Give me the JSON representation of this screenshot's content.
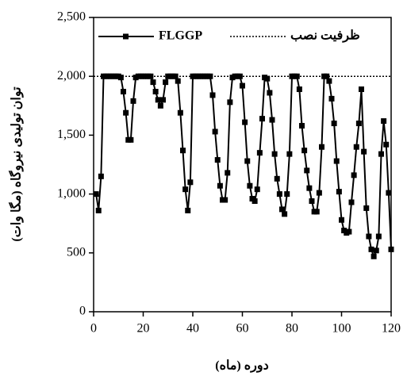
{
  "chart_data": {
    "type": "line",
    "ylabel": "توان تولیدی نیروگاه (مگا وات)",
    "xlabel": "دوره (ماه)",
    "xlim": [
      0,
      120
    ],
    "xticks": [
      0,
      20,
      40,
      60,
      80,
      100,
      120
    ],
    "ylim": [
      0,
      2500
    ],
    "yticks": [
      0,
      500,
      {
        "value": 1000,
        "label": "1,000"
      },
      {
        "value": 1500,
        "label": "1,500"
      },
      {
        "value": 2000,
        "label": "2,000"
      },
      {
        "value": 2500,
        "label": "2,500"
      }
    ],
    "series": [
      {
        "name": "FLGGP",
        "color": "#000000",
        "marker": "square",
        "dash": "solid",
        "x": [
          1,
          2,
          3,
          4,
          5,
          6,
          7,
          8,
          9,
          10,
          11,
          12,
          13,
          14,
          15,
          16,
          17,
          18,
          19,
          20,
          21,
          22,
          23,
          24,
          25,
          26,
          27,
          28,
          29,
          30,
          31,
          32,
          33,
          34,
          35,
          36,
          37,
          38,
          39,
          40,
          41,
          42,
          43,
          44,
          45,
          46,
          47,
          48,
          49,
          50,
          51,
          52,
          53,
          54,
          55,
          56,
          57,
          58,
          59,
          60,
          61,
          62,
          63,
          64,
          65,
          66,
          67,
          68,
          69,
          70,
          71,
          72,
          73,
          74,
          75,
          76,
          77,
          78,
          79,
          80,
          81,
          82,
          83,
          84,
          85,
          86,
          87,
          88,
          89,
          90,
          91,
          92,
          93,
          94,
          95,
          96,
          97,
          98,
          99,
          100,
          101,
          102,
          103,
          104,
          105,
          106,
          107,
          108,
          109,
          110,
          111,
          112,
          113,
          114,
          115,
          116,
          117,
          118,
          119,
          120
        ],
        "values": [
          1000,
          860,
          1150,
          2000,
          2000,
          2000,
          2000,
          2000,
          2000,
          2000,
          1990,
          1870,
          1690,
          1460,
          1460,
          1790,
          1990,
          2000,
          2000,
          2000,
          2000,
          2000,
          2000,
          1950,
          1870,
          1800,
          1750,
          1800,
          1950,
          2000,
          2000,
          2000,
          2000,
          1960,
          1690,
          1370,
          1040,
          860,
          1100,
          2000,
          2000,
          2000,
          2000,
          2000,
          2000,
          2000,
          2000,
          1840,
          1530,
          1290,
          1070,
          950,
          950,
          1180,
          1780,
          1990,
          2000,
          2000,
          2000,
          1920,
          1610,
          1280,
          1070,
          960,
          940,
          1040,
          1350,
          1640,
          1990,
          1980,
          1860,
          1630,
          1340,
          1130,
          1000,
          870,
          830,
          1000,
          1340,
          2000,
          2000,
          2000,
          1890,
          1580,
          1370,
          1200,
          1050,
          940,
          850,
          850,
          1010,
          1400,
          2000,
          2000,
          1960,
          1810,
          1600,
          1280,
          1020,
          780,
          690,
          670,
          680,
          930,
          1160,
          1400,
          1600,
          1890,
          1360,
          880,
          640,
          530,
          470,
          520,
          640,
          1340,
          1620,
          1420,
          1010,
          530
        ]
      },
      {
        "name": "ظرفیت نصب",
        "color": "#000000",
        "marker": "none",
        "dash": "dotted",
        "x": [
          0,
          120
        ],
        "values": [
          2000,
          2000
        ]
      }
    ]
  }
}
